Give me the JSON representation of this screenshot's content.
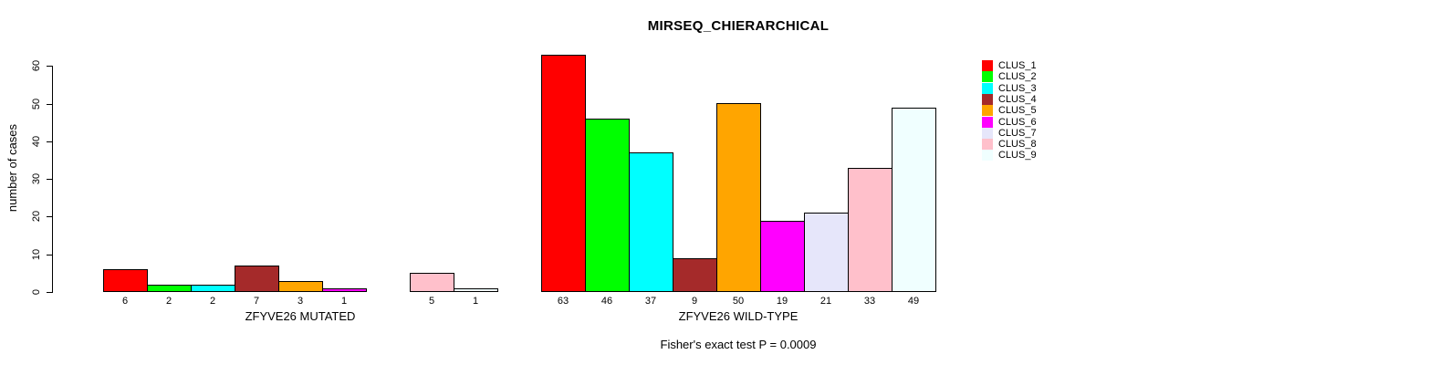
{
  "chart_data": {
    "type": "bar",
    "title": "MIRSEQ_CHIERARCHICAL",
    "ylabel": "number of cases",
    "annotation": "Fisher's exact test P = 0.0009",
    "ylim": [
      0,
      60
    ],
    "yticks": [
      0,
      10,
      20,
      30,
      40,
      50,
      60
    ],
    "grid": false,
    "legend_position": "right",
    "categories": [
      "CLUS_1",
      "CLUS_2",
      "CLUS_3",
      "CLUS_4",
      "CLUS_5",
      "CLUS_6",
      "CLUS_7",
      "CLUS_8",
      "CLUS_9"
    ],
    "colors": [
      "#ff0000",
      "#00ff00",
      "#00ffff",
      "#a52a2a",
      "#ffa500",
      "#ff00ff",
      "#e6e6fa",
      "#ffc0cb",
      "#f0ffff"
    ],
    "series": [
      {
        "name": "ZFYVE26 MUTATED",
        "values": [
          6,
          2,
          2,
          7,
          3,
          1,
          0,
          5,
          1
        ]
      },
      {
        "name": "ZFYVE26 WILD-TYPE",
        "values": [
          63,
          46,
          37,
          9,
          50,
          19,
          21,
          33,
          49
        ]
      }
    ],
    "bar_value_labels": true,
    "zero_value_bars_hidden": true
  }
}
